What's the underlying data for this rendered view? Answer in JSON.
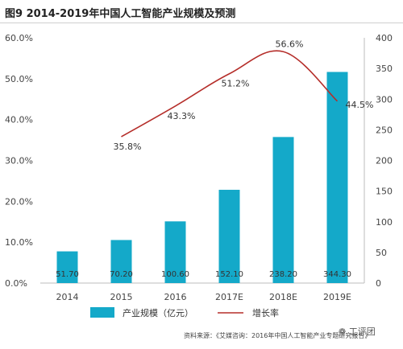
{
  "header": {
    "title": "图9  2014-2019年中国人工智能产业规模及预测"
  },
  "footer": {
    "source": "资料来源：《艾媒咨询：2016年中国人工智能产业专题研究报告》",
    "watermark": "工评团"
  },
  "chart_data": {
    "type": "bar",
    "categories": [
      "2014",
      "2015",
      "2016",
      "2017E",
      "2018E",
      "2019E"
    ],
    "series": [
      {
        "name": "产业规模（亿元）",
        "type": "bar",
        "axis": "right",
        "values": [
          51.7,
          70.2,
          100.6,
          152.1,
          238.2,
          344.3
        ],
        "labels": [
          "51.70",
          "70.20",
          "100.60",
          "152.10",
          "238.20",
          "344.30"
        ],
        "color": "#14a9c9"
      },
      {
        "name": "增长率",
        "type": "line",
        "axis": "left",
        "values": [
          null,
          35.8,
          43.3,
          51.2,
          56.6,
          44.5
        ],
        "labels": [
          "",
          "35.8%",
          "43.3%",
          "51.2%",
          "56.6%",
          "44.5%"
        ],
        "color": "#b52e2a"
      }
    ],
    "y_left": {
      "min": 0,
      "max": 60,
      "step": 10,
      "tick_labels": [
        "0.0%",
        "10.0%",
        "20.0%",
        "30.0%",
        "40.0%",
        "50.0%",
        "60.0%"
      ]
    },
    "y_right": {
      "min": 0,
      "max": 400,
      "step": 50,
      "tick_labels": [
        "0",
        "50",
        "100",
        "150",
        "200",
        "250",
        "300",
        "350",
        "400"
      ]
    },
    "grid": false,
    "legend_position": "bottom"
  }
}
